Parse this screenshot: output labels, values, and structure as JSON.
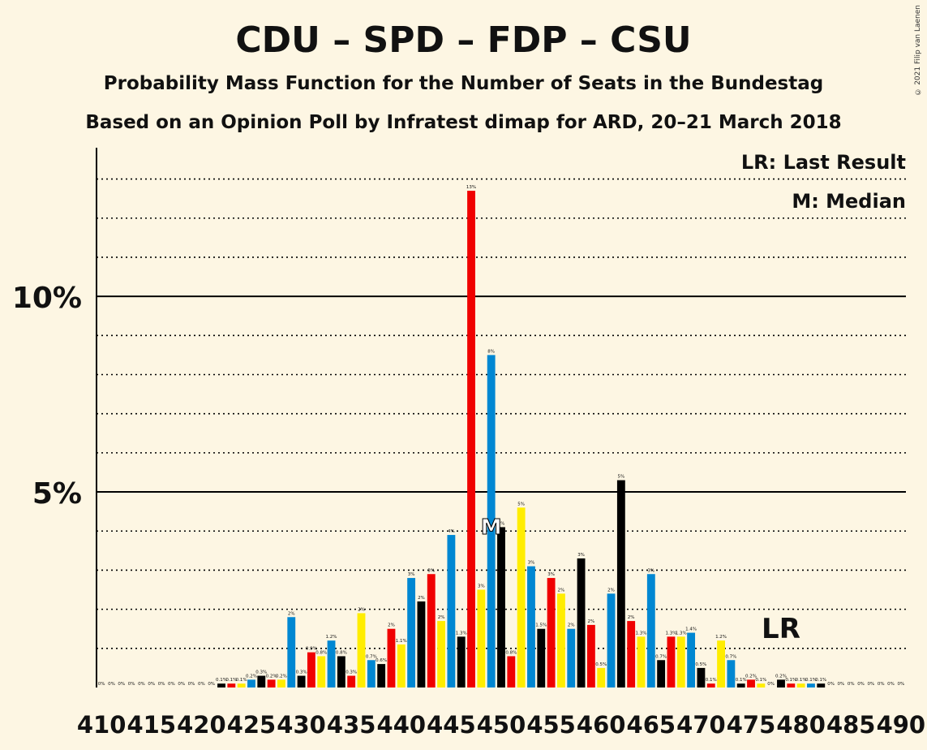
{
  "header": {
    "title": "CDU – SPD – FDP – CSU",
    "subtitle": "Probability Mass Function for the Number of Seats in the Bundestag",
    "subtitle2": "Based on an Opinion Poll by Infratest dimap for ARD, 20–21 March 2018",
    "copyright": "© 2021 Filip van Laenen"
  },
  "legend": {
    "lr": "LR: Last Result",
    "median": "M: Median"
  },
  "colors": {
    "background": "#fdf6e3",
    "series": [
      "#000000",
      "#f00000",
      "#ffed00",
      "#0087d2"
    ]
  },
  "chart_data": {
    "type": "bar",
    "x_start": 410,
    "x_end": 490,
    "xtick_labels": [
      "410",
      "415",
      "420",
      "425",
      "430",
      "435",
      "440",
      "445",
      "450",
      "455",
      "460",
      "465",
      "470",
      "475",
      "480",
      "485",
      "490"
    ],
    "ytick_labels": [
      "5%",
      "10%"
    ],
    "ylim": [
      0,
      13.8
    ],
    "grid": true,
    "values": [
      0.0,
      0.0,
      0.0,
      0.0,
      0.0,
      0.0,
      0.0,
      0.0,
      0.0,
      0.0,
      0.0,
      0.0,
      0.1,
      0.1,
      0.1,
      0.2,
      0.3,
      0.2,
      0.2,
      1.8,
      0.3,
      0.9,
      0.8,
      1.2,
      0.8,
      0.3,
      1.9,
      0.7,
      0.6,
      1.5,
      1.1,
      2.8,
      2.2,
      2.9,
      1.7,
      3.9,
      1.3,
      12.7,
      2.5,
      8.5,
      4.1,
      0.8,
      4.6,
      3.1,
      1.5,
      2.8,
      2.4,
      1.5,
      3.3,
      1.6,
      0.5,
      2.4,
      5.3,
      1.7,
      1.3,
      2.9,
      0.7,
      1.3,
      1.3,
      1.4,
      0.5,
      0.1,
      1.2,
      0.7,
      0.1,
      0.2,
      0.1,
      0.0,
      0.2,
      0.1,
      0.1,
      0.1,
      0.1,
      0.0,
      0.0,
      0.0,
      0.0,
      0.0,
      0.0,
      0.0,
      0.0
    ],
    "value_labels": [
      "0%",
      "0%",
      "0%",
      "0%",
      "0%",
      "0%",
      "0%",
      "0%",
      "0%",
      "0%",
      "0%",
      "0%",
      "0.1%",
      "0.1%",
      "0.1%",
      "0.2%",
      "0.3%",
      "0.2%",
      "0.2%",
      "2%",
      "0.3%",
      "0.9%",
      "0.8%",
      "1.2%",
      "0.8%",
      "0.3%",
      "2%",
      "0.7%",
      "0.6%",
      "2%",
      "1.1%",
      "3%",
      "2%",
      "3%",
      "2%",
      "4%",
      "1.3%",
      "13%",
      "3%",
      "8%",
      "4%",
      "0.8%",
      "5%",
      "3%",
      "1.5%",
      "3%",
      "2%",
      "2%",
      "3%",
      "2%",
      "0.5%",
      "2%",
      "5%",
      "2%",
      "1.3%",
      "3%",
      "0.7%",
      "1.3%",
      "1.3%",
      "1.4%",
      "0.5%",
      "0.1%",
      "1.2%",
      "0.7%",
      "0.1%",
      "0.2%",
      "0.1%",
      "0%",
      "0.2%",
      "0.1%",
      "0.1%",
      "0.1%",
      "0.1%",
      "0%",
      "0%",
      "0%",
      "0%",
      "0%",
      "0%",
      "0%",
      "0%"
    ],
    "median_seat": 449,
    "median_marker": "M",
    "last_result_seat": 478,
    "last_result_marker": "LR"
  }
}
